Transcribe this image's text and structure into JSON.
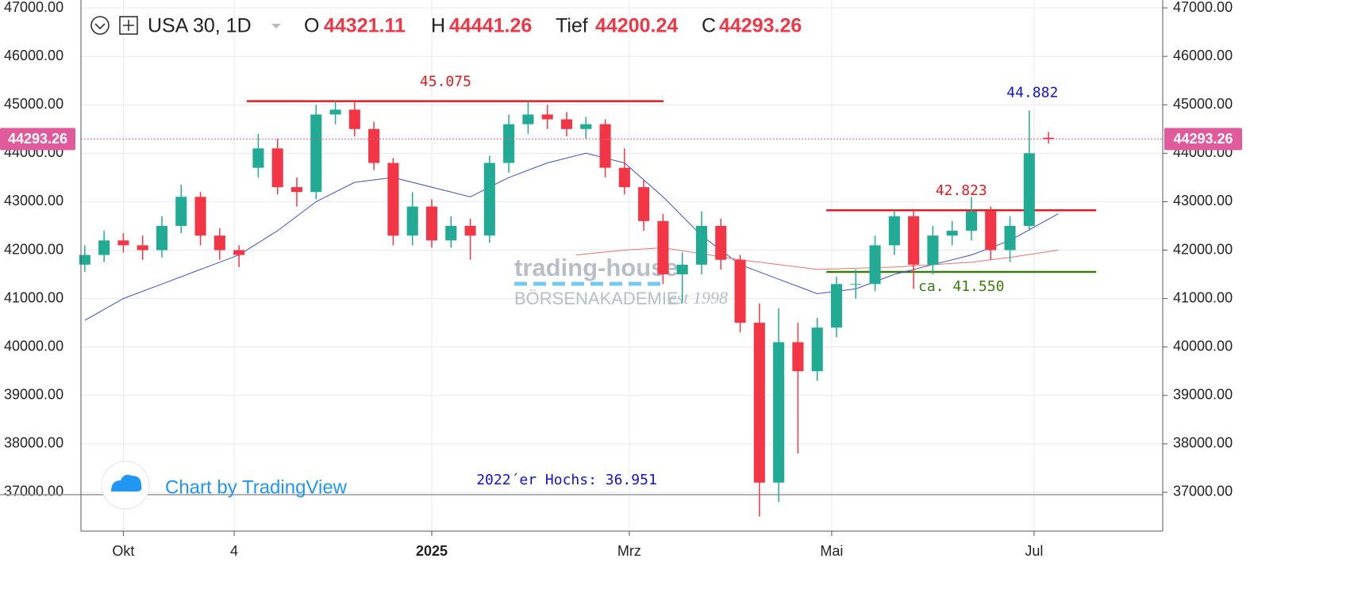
{
  "header": {
    "symbol": "USA 30, 1D",
    "o_label": "O",
    "h_label": "H",
    "l_label": "Tief",
    "c_label": "C"
  },
  "watermark": {
    "brand": "trading-house",
    "sub": "BÖRSENAKADEMIE",
    "est": "est 1998",
    "credit": "Chart by TradingView"
  },
  "chart_data": {
    "type": "candlestick",
    "xlim": [
      -0.8,
      223.7
    ],
    "xticks": [
      {
        "value": 8,
        "label": "Okt"
      },
      {
        "value": 31,
        "label": "4"
      },
      {
        "value": 72,
        "label": "2025"
      },
      {
        "value": 113,
        "label": "Mrz"
      },
      {
        "value": 155,
        "label": "Mai"
      },
      {
        "value": 197,
        "label": "Jul"
      }
    ],
    "ylim": [
      36198,
      47164
    ],
    "yticks": [
      {
        "value": 37000,
        "label": "37000.00"
      },
      {
        "value": 38000,
        "label": "38000.00"
      },
      {
        "value": 39000,
        "label": "39000.00"
      },
      {
        "value": 40000,
        "label": "40000.00"
      },
      {
        "value": 41000,
        "label": "41000.00"
      },
      {
        "value": 42000,
        "label": "42000.00"
      },
      {
        "value": 43000,
        "label": "43000.00"
      },
      {
        "value": 44000,
        "label": "44000.00"
      },
      {
        "value": 45000,
        "label": "45000.00"
      },
      {
        "value": 46000,
        "label": "46000.00"
      },
      {
        "value": 47000,
        "label": "47000.00"
      }
    ],
    "grid": true,
    "up_color": "#22ab94",
    "down_color": "#f23645",
    "x": [
      0,
      4,
      8,
      12,
      16,
      20,
      24,
      28,
      32,
      36,
      40,
      44,
      48,
      52,
      56,
      60,
      64,
      68,
      72,
      76,
      80,
      84,
      88,
      92,
      96,
      100,
      104,
      108,
      112,
      116,
      120,
      124,
      128,
      132,
      136,
      140,
      144,
      148,
      152,
      156,
      160,
      164,
      168,
      172,
      176,
      180,
      184,
      188,
      192,
      196,
      200
    ],
    "open": [
      41700,
      41900,
      42200,
      42100,
      42000,
      42500,
      43100,
      42300,
      42000,
      43700,
      44100,
      43300,
      43200,
      44800,
      44900,
      44500,
      43800,
      42300,
      42900,
      42200,
      42500,
      42300,
      43800,
      44600,
      44800,
      44700,
      44500,
      44600,
      43700,
      43300,
      42600,
      41500,
      41700,
      42500,
      41800,
      40500,
      37200,
      40100,
      39500,
      40400,
      41300,
      41300,
      42100,
      42700,
      41700,
      42300,
      42400,
      42800,
      42000,
      42500,
      44321.11
    ],
    "high": [
      42100,
      42400,
      42350,
      42300,
      42700,
      43350,
      43200,
      42450,
      42100,
      44400,
      44300,
      43500,
      45000,
      45075,
      45050,
      44650,
      43900,
      43200,
      43050,
      42700,
      42650,
      43950,
      44800,
      45075,
      45000,
      44850,
      44750,
      44700,
      44100,
      43450,
      42750,
      41950,
      42800,
      42650,
      41900,
      40900,
      40800,
      40500,
      40600,
      41450,
      41600,
      42300,
      42823,
      42850,
      42500,
      42600,
      43100,
      42900,
      42700,
      44882,
      44441.26
    ],
    "low": [
      41550,
      41750,
      41950,
      41800,
      41850,
      42350,
      42100,
      41800,
      41650,
      43500,
      43150,
      42900,
      43050,
      44600,
      44350,
      43650,
      42100,
      42100,
      42050,
      42050,
      41800,
      42150,
      43600,
      44400,
      44500,
      44350,
      44300,
      43500,
      43150,
      42400,
      41300,
      40900,
      41500,
      41600,
      40300,
      36500,
      36800,
      37800,
      39300,
      40200,
      41000,
      41150,
      41900,
      41200,
      41500,
      42100,
      42200,
      41800,
      41750,
      42400,
      44200.24
    ],
    "close": [
      41900,
      42200,
      42100,
      42000,
      42500,
      43100,
      42300,
      42000,
      41900,
      44100,
      43300,
      43200,
      44800,
      44900,
      44500,
      43800,
      42300,
      42900,
      42200,
      42500,
      42300,
      43800,
      44600,
      44800,
      44700,
      44500,
      44600,
      43700,
      43300,
      42600,
      41500,
      41700,
      42500,
      41800,
      40500,
      37200,
      40100,
      39500,
      40400,
      41300,
      41300,
      42100,
      42700,
      41700,
      42300,
      42400,
      42800,
      42000,
      42500,
      44000,
      44293.26
    ],
    "lines": [
      {
        "color": "#3b4fd8",
        "x": [
          0,
          8,
          16,
          24,
          32,
          40,
          48,
          56,
          64,
          72,
          80,
          88,
          96,
          104,
          112,
          120,
          128,
          136,
          144,
          152,
          160,
          168,
          176,
          184,
          192,
          202
        ],
        "values": [
          40550,
          41000,
          41300,
          41600,
          41900,
          42400,
          43000,
          43400,
          43500,
          43300,
          43100,
          43500,
          43800,
          44000,
          43800,
          43100,
          42300,
          41700,
          41400,
          41100,
          41200,
          41500,
          41700,
          41900,
          42200,
          42750
        ]
      },
      {
        "color": "#f07070",
        "x": [
          102,
          112,
          120,
          136,
          152,
          168,
          184,
          192,
          202
        ],
        "values": [
          41900,
          42000,
          42050,
          41800,
          41600,
          41650,
          41750,
          41850,
          42000
        ]
      }
    ],
    "levels": [
      {
        "value": 45075,
        "label": "45.075",
        "color": "#e8191e",
        "x": [
          33.6,
          120.1
        ]
      },
      {
        "value": 42823,
        "label": "42.823",
        "color": "#e8191e",
        "x": [
          153.9,
          209.9
        ]
      },
      {
        "value": 41550,
        "label": "ca. 41.550",
        "color": "#3a7d0a",
        "x": [
          153.9,
          209.9
        ]
      },
      {
        "value": 36951,
        "label": "2022´er Hochs: 36.951",
        "color": "#1010e0"
      }
    ],
    "peak_label": {
      "value": 44882,
      "label": "44.882",
      "color": "#1010e0"
    },
    "price_line_color": "#e05a9c"
  }
}
